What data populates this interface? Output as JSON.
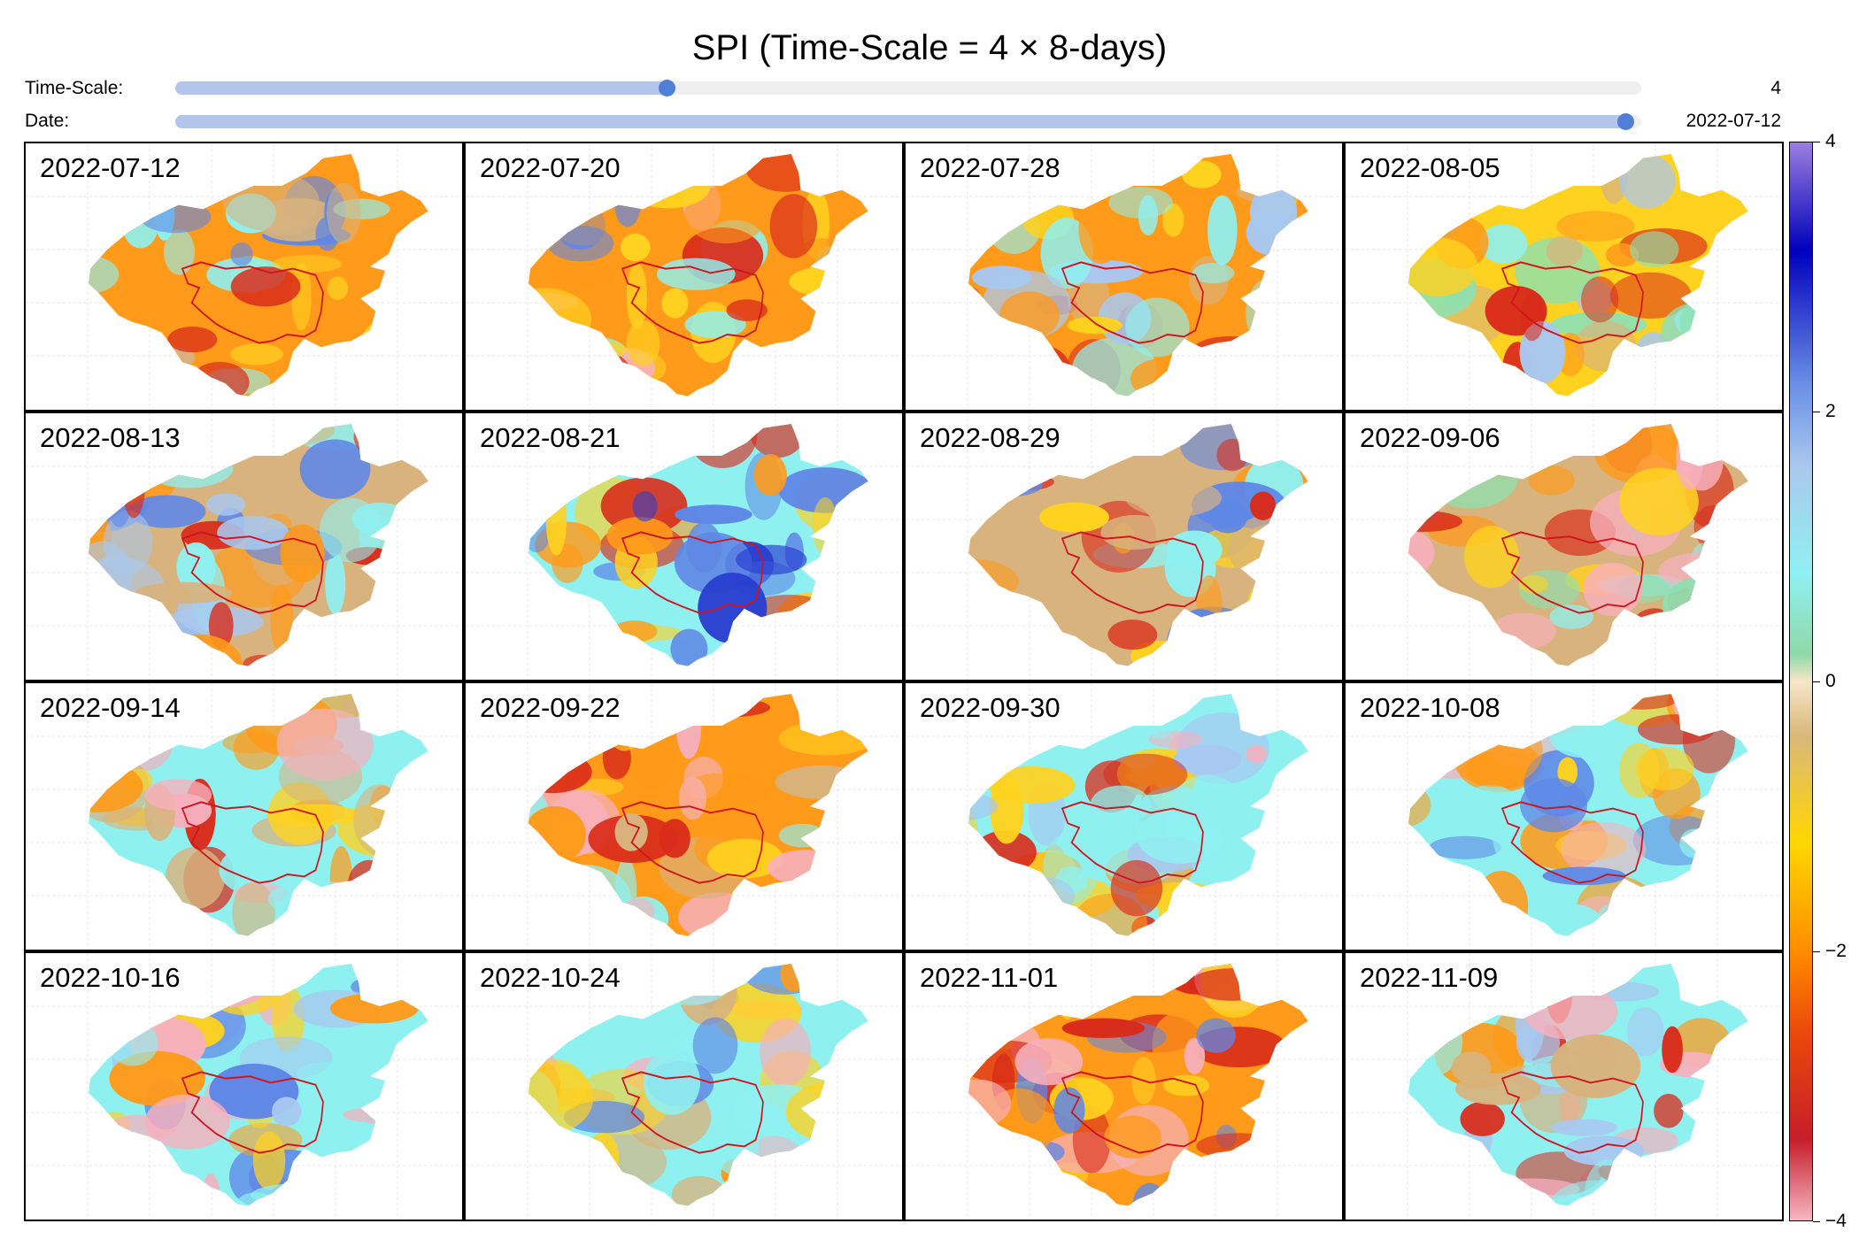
{
  "title": "SPI (Time-Scale = 4 × 8-days)",
  "controls": {
    "timescale": {
      "label": "Time-Scale:",
      "value": "4",
      "fraction": 0.335
    },
    "date": {
      "label": "Date:",
      "value": "2022-07-12",
      "fraction": 0.989
    },
    "slider_fill_color": "#b3c5ea",
    "slider_knob_color": "#4f7fd6"
  },
  "panels": [
    {
      "date": "2022-07-12"
    },
    {
      "date": "2022-07-20"
    },
    {
      "date": "2022-07-28"
    },
    {
      "date": "2022-08-05"
    },
    {
      "date": "2022-08-13"
    },
    {
      "date": "2022-08-21"
    },
    {
      "date": "2022-08-29"
    },
    {
      "date": "2022-09-06"
    },
    {
      "date": "2022-09-14"
    },
    {
      "date": "2022-09-22"
    },
    {
      "date": "2022-09-30"
    },
    {
      "date": "2022-10-08"
    },
    {
      "date": "2022-10-16"
    },
    {
      "date": "2022-10-24"
    },
    {
      "date": "2022-11-01"
    },
    {
      "date": "2022-11-09"
    }
  ],
  "colorbar": {
    "range": [
      -4,
      4
    ],
    "ticks": [
      {
        "value": 4,
        "label": "4"
      },
      {
        "value": 2,
        "label": "2"
      },
      {
        "value": 0,
        "label": "0"
      },
      {
        "value": -2,
        "label": "−2"
      },
      {
        "value": -4,
        "label": "−4"
      }
    ],
    "stops": [
      {
        "value": -4,
        "color": "#f7b6c2"
      },
      {
        "value": -3.4,
        "color": "#c41e2a"
      },
      {
        "value": -2.6,
        "color": "#ea4a0a"
      },
      {
        "value": -2,
        "color": "#ff8c00"
      },
      {
        "value": -1.2,
        "color": "#ffd700"
      },
      {
        "value": -0.4,
        "color": "#d9b87a"
      },
      {
        "value": 0,
        "color": "#f5e6c8"
      },
      {
        "value": 0.2,
        "color": "#8fd9a8"
      },
      {
        "value": 0.8,
        "color": "#8ff0f2"
      },
      {
        "value": 1.6,
        "color": "#a9c8ee"
      },
      {
        "value": 2.2,
        "color": "#6a90e6"
      },
      {
        "value": 3.2,
        "color": "#0000bb"
      },
      {
        "value": 4,
        "color": "#9b7fe0"
      }
    ]
  },
  "map_colors": {
    "pink": "#f7b0bd",
    "red": "#d92b1a",
    "orange": "#ff9a1a",
    "yellow": "#ffd21f",
    "tan": "#d8b37d",
    "mint": "#8fe0b0",
    "cyan": "#8ff0f0",
    "lightblue": "#a8c8f0",
    "blue": "#5f87e6",
    "darkblue": "#2a3fd0",
    "basin_outline": "#d0141e"
  }
}
